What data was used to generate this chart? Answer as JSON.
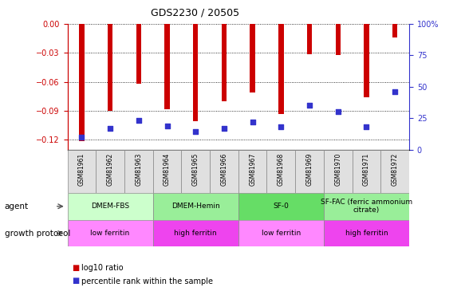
{
  "title": "GDS2230 / 20505",
  "categories": [
    "GSM81961",
    "GSM81962",
    "GSM81963",
    "GSM81964",
    "GSM81965",
    "GSM81966",
    "GSM81967",
    "GSM81968",
    "GSM81969",
    "GSM81970",
    "GSM81971",
    "GSM81972"
  ],
  "log10_ratio": [
    -0.121,
    -0.09,
    -0.062,
    -0.088,
    -0.101,
    -0.08,
    -0.071,
    -0.093,
    -0.031,
    -0.032,
    -0.076,
    -0.014
  ],
  "percentile_rank": [
    10,
    17,
    23,
    19,
    14,
    17,
    22,
    18,
    35,
    30,
    18,
    46
  ],
  "ylim_left": [
    -0.13,
    0.0
  ],
  "ylim_right": [
    0,
    100
  ],
  "yticks_left": [
    0.0,
    -0.03,
    -0.06,
    -0.09,
    -0.12
  ],
  "yticks_right": [
    0,
    25,
    50,
    75,
    100
  ],
  "bar_color": "#cc0000",
  "dot_color": "#3333cc",
  "agent_groups": [
    {
      "label": "DMEM-FBS",
      "start": 0,
      "end": 3,
      "color": "#ccffcc"
    },
    {
      "label": "DMEM-Hemin",
      "start": 3,
      "end": 6,
      "color": "#99ee99"
    },
    {
      "label": "SF-0",
      "start": 6,
      "end": 9,
      "color": "#66dd66"
    },
    {
      "label": "SF-FAC (ferric ammonium\ncitrate)",
      "start": 9,
      "end": 12,
      "color": "#99ee99"
    }
  ],
  "protocol_groups": [
    {
      "label": "low ferritin",
      "start": 0,
      "end": 3,
      "color": "#ff88ff"
    },
    {
      "label": "high ferritin",
      "start": 3,
      "end": 6,
      "color": "#ee44ee"
    },
    {
      "label": "low ferritin",
      "start": 6,
      "end": 9,
      "color": "#ff88ff"
    },
    {
      "label": "high ferritin",
      "start": 9,
      "end": 12,
      "color": "#ee44ee"
    }
  ],
  "legend_red_label": "log10 ratio",
  "legend_blue_label": "percentile rank within the sample",
  "left_axis_color": "#cc0000",
  "right_axis_color": "#3333cc",
  "bar_width": 0.18,
  "dot_size": 18
}
